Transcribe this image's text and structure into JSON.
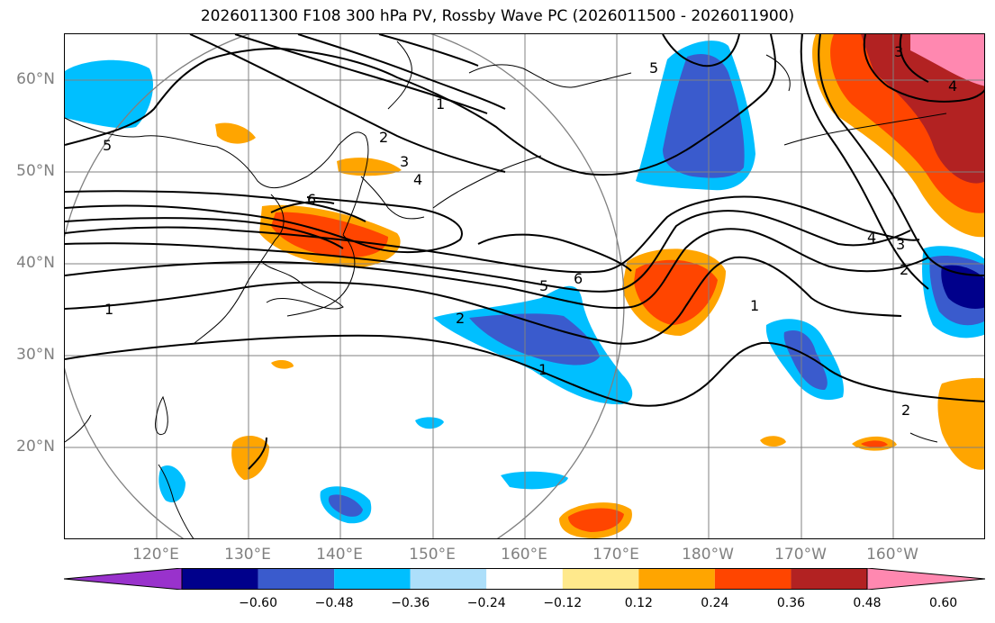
{
  "title": "2026011300 F108 300 hPa PV, Rossby Wave PC (2026011500 - 2026011900)",
  "lat_labels": [
    "60°N",
    "50°N",
    "40°N",
    "30°N",
    "20°N"
  ],
  "lon_labels": [
    "120°E",
    "130°E",
    "140°E",
    "150°E",
    "160°E",
    "170°E",
    "180°W",
    "170°W",
    "160°W"
  ],
  "colorbar": {
    "ticks": [
      "−0.60",
      "−0.48",
      "−0.36",
      "−0.24",
      "−0.12",
      "0.12",
      "0.24",
      "0.36",
      "0.48",
      "0.60"
    ],
    "colors": [
      "#9932CC",
      "#00008B",
      "#3A5BCD",
      "#00BFFF",
      "#ADDFFA",
      "#FFFFFF",
      "#FFE98C",
      "#FFA500",
      "#FF4500",
      "#B22222",
      "#FF88B0"
    ]
  },
  "contour_labels": [
    "1",
    "2",
    "3",
    "4",
    "5",
    "6",
    "1",
    "2",
    "3",
    "4",
    "5",
    "6",
    "1",
    "2",
    "5",
    "1",
    "2",
    "3",
    "4"
  ],
  "colors": {
    "grid": "#808080",
    "contour": "#000000",
    "circle": "#808080"
  }
}
